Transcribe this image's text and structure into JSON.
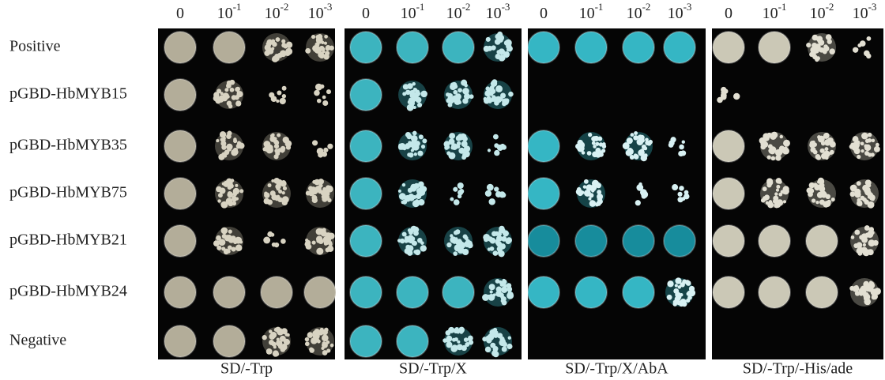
{
  "rows": [
    "Positive",
    "pGBD-HbMYB15",
    "pGBD-HbMYB35",
    "pGBD-HbMYB75",
    "pGBD-HbMYB21",
    "pGBD-HbMYB24",
    "Negative"
  ],
  "panels": [
    {
      "label": "SD/-Trp",
      "dilutions": [
        {
          "base": "0"
        },
        {
          "base": "10",
          "exponent": "-1"
        },
        {
          "base": "10",
          "exponent": "-2"
        },
        {
          "base": "10",
          "exponent": "-3"
        }
      ]
    },
    {
      "label": "SD/-Trp/X",
      "dilutions": [
        {
          "base": "0"
        },
        {
          "base": "10",
          "exponent": "-1"
        },
        {
          "base": "10",
          "exponent": "-2"
        },
        {
          "base": "10",
          "exponent": "-3"
        }
      ]
    },
    {
      "label": "SD/-Trp/X/AbA",
      "dilutions": [
        {
          "base": "0"
        },
        {
          "base": "10",
          "exponent": "-1"
        },
        {
          "base": "10",
          "exponent": "-2"
        },
        {
          "base": "10",
          "exponent": "-3"
        }
      ]
    },
    {
      "label": "SD/-Trp/-His/ade",
      "dilutions": [
        {
          "base": "0"
        },
        {
          "base": "10",
          "exponent": "-1"
        },
        {
          "base": "10",
          "exponent": "-2"
        },
        {
          "base": "10",
          "exponent": "-3"
        }
      ]
    }
  ]
}
